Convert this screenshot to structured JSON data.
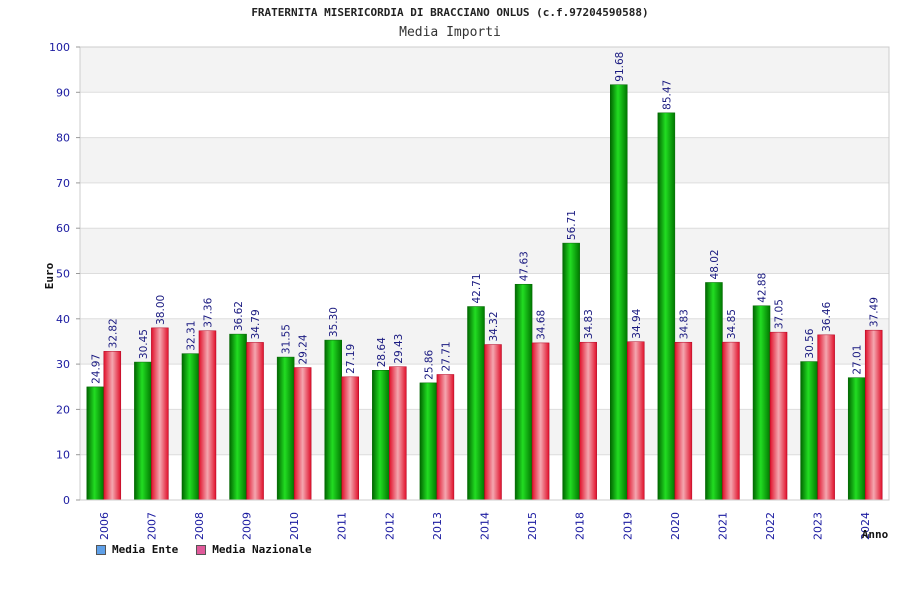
{
  "chart_data": {
    "type": "bar",
    "title": "FRATERNITA MISERICORDIA DI BRACCIANO ONLUS (c.f.97204590588)",
    "subtitle": "Media Importi",
    "ylabel": "Euro",
    "xlabel": "Anno",
    "ylim": [
      0,
      100
    ],
    "yticks": [
      0,
      10,
      20,
      30,
      40,
      50,
      60,
      70,
      80,
      90,
      100
    ],
    "grid": true,
    "legend_position": "bottom-left",
    "categories": [
      "2006",
      "2007",
      "2008",
      "2009",
      "2010",
      "2011",
      "2012",
      "2013",
      "2014",
      "2015",
      "2018",
      "2019",
      "2020",
      "2021",
      "2022",
      "2023",
      "2024"
    ],
    "series": [
      {
        "name": "Media Ente",
        "legend_color": "#5fa0e8",
        "bar_color": "#00aa00",
        "values": [
          24.97,
          30.45,
          32.31,
          36.62,
          31.55,
          35.3,
          28.64,
          25.86,
          42.71,
          47.63,
          56.71,
          91.68,
          85.47,
          48.02,
          42.88,
          30.56,
          27.01
        ],
        "value_labels": [
          "24.97",
          "30.45",
          "32.31",
          "36.62",
          "31.55",
          "35.30",
          "28.64",
          "25.86",
          "42.71",
          "47.63",
          "56.71",
          "91.68",
          "85.47",
          "48.02",
          "42.88",
          "30.56",
          "27.01"
        ]
      },
      {
        "name": "Media Nazionale",
        "legend_color": "#e05a9a",
        "bar_color": "#e8203a",
        "values": [
          32.82,
          38.0,
          37.36,
          34.79,
          29.24,
          27.19,
          29.43,
          27.71,
          34.32,
          34.68,
          34.83,
          34.94,
          34.83,
          34.85,
          37.05,
          36.46,
          37.49
        ],
        "value_labels": [
          "32.82",
          "38.00",
          "37.36",
          "34.79",
          "29.24",
          "27.19",
          "29.43",
          "27.71",
          "34.32",
          "34.68",
          "34.83",
          "34.94",
          "34.83",
          "34.85",
          "37.05",
          "36.46",
          "37.49"
        ]
      }
    ]
  }
}
